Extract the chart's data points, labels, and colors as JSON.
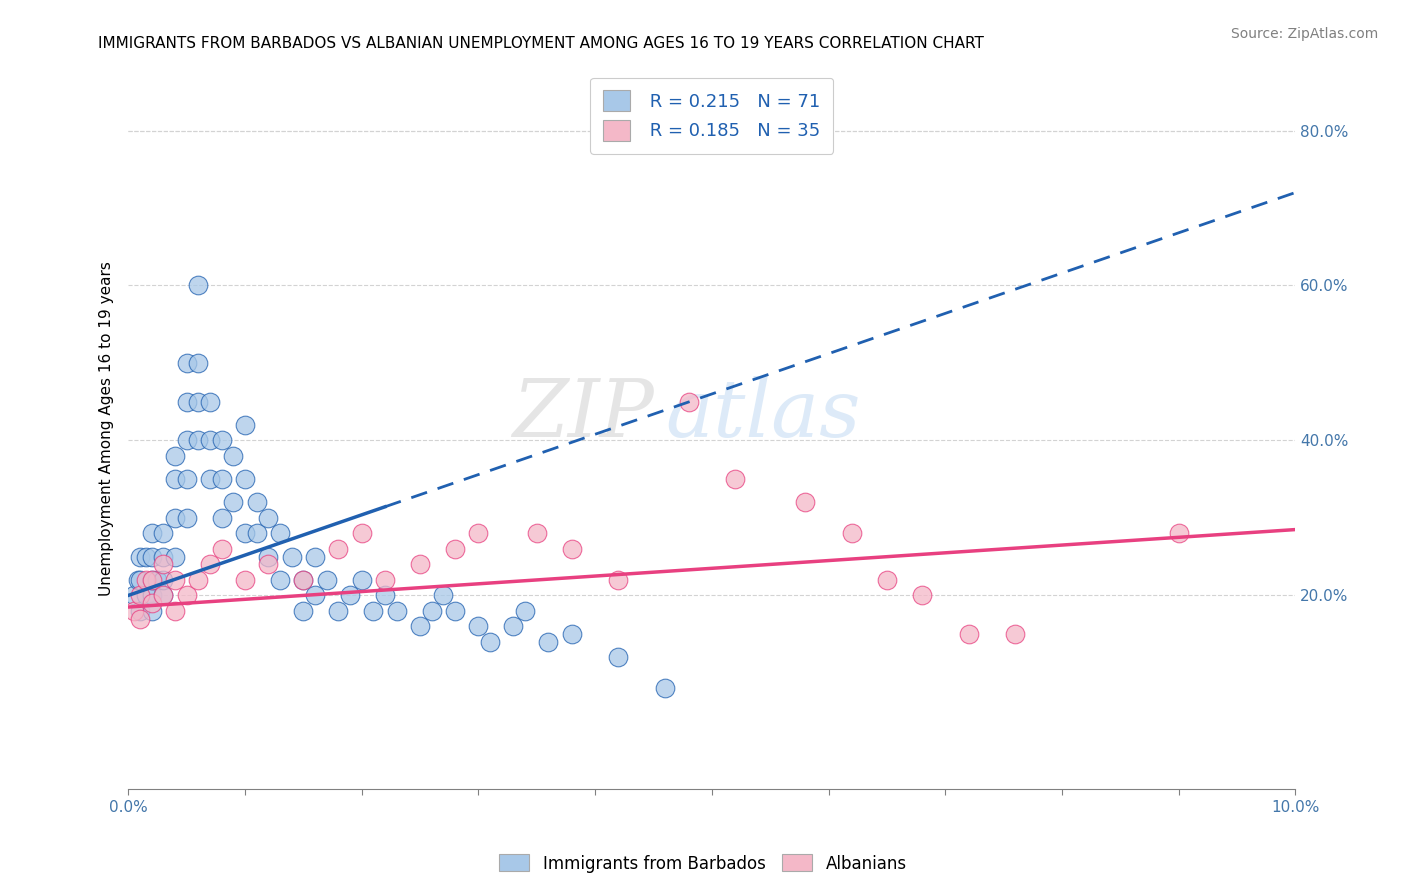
{
  "title": "IMMIGRANTS FROM BARBADOS VS ALBANIAN UNEMPLOYMENT AMONG AGES 16 TO 19 YEARS CORRELATION CHART",
  "source": "Source: ZipAtlas.com",
  "ylabel": "Unemployment Among Ages 16 to 19 years",
  "right_yticks": [
    "20.0%",
    "40.0%",
    "60.0%",
    "80.0%"
  ],
  "right_ytick_vals": [
    0.2,
    0.4,
    0.6,
    0.8
  ],
  "legend1_r": "R = 0.215",
  "legend1_n": "N = 71",
  "legend2_r": "R = 0.185",
  "legend2_n": "N = 35",
  "legend1_label": "Immigrants from Barbados",
  "legend2_label": "Albanians",
  "blue_color": "#a8c8e8",
  "pink_color": "#f4b8c8",
  "blue_line_color": "#2060b0",
  "pink_line_color": "#e84080",
  "background_color": "#ffffff",
  "watermark_zip": "ZIP",
  "watermark_atlas": "atlas",
  "xmin": 0.0,
  "xmax": 0.1,
  "ymin": -0.05,
  "ymax": 0.88,
  "blue_x": [
    0.0005,
    0.0008,
    0.001,
    0.001,
    0.001,
    0.0015,
    0.0015,
    0.002,
    0.002,
    0.002,
    0.002,
    0.002,
    0.0025,
    0.003,
    0.003,
    0.003,
    0.003,
    0.004,
    0.004,
    0.004,
    0.004,
    0.005,
    0.005,
    0.005,
    0.005,
    0.005,
    0.006,
    0.006,
    0.006,
    0.006,
    0.007,
    0.007,
    0.007,
    0.008,
    0.008,
    0.008,
    0.009,
    0.009,
    0.01,
    0.01,
    0.01,
    0.011,
    0.011,
    0.012,
    0.012,
    0.013,
    0.013,
    0.014,
    0.015,
    0.015,
    0.016,
    0.016,
    0.017,
    0.018,
    0.019,
    0.02,
    0.021,
    0.022,
    0.023,
    0.025,
    0.026,
    0.027,
    0.028,
    0.03,
    0.031,
    0.033,
    0.034,
    0.036,
    0.038,
    0.042,
    0.046
  ],
  "blue_y": [
    0.2,
    0.22,
    0.18,
    0.22,
    0.25,
    0.2,
    0.25,
    0.18,
    0.2,
    0.22,
    0.25,
    0.28,
    0.22,
    0.2,
    0.22,
    0.25,
    0.28,
    0.25,
    0.3,
    0.35,
    0.38,
    0.3,
    0.35,
    0.4,
    0.45,
    0.5,
    0.4,
    0.45,
    0.5,
    0.6,
    0.35,
    0.4,
    0.45,
    0.3,
    0.35,
    0.4,
    0.32,
    0.38,
    0.28,
    0.35,
    0.42,
    0.28,
    0.32,
    0.25,
    0.3,
    0.22,
    0.28,
    0.25,
    0.18,
    0.22,
    0.2,
    0.25,
    0.22,
    0.18,
    0.2,
    0.22,
    0.18,
    0.2,
    0.18,
    0.16,
    0.18,
    0.2,
    0.18,
    0.16,
    0.14,
    0.16,
    0.18,
    0.14,
    0.15,
    0.12,
    0.08
  ],
  "pink_x": [
    0.0005,
    0.001,
    0.001,
    0.0015,
    0.002,
    0.002,
    0.003,
    0.003,
    0.004,
    0.004,
    0.005,
    0.006,
    0.007,
    0.008,
    0.01,
    0.012,
    0.015,
    0.018,
    0.02,
    0.022,
    0.025,
    0.028,
    0.03,
    0.035,
    0.038,
    0.042,
    0.048,
    0.052,
    0.058,
    0.062,
    0.065,
    0.068,
    0.072,
    0.076,
    0.09
  ],
  "pink_y": [
    0.18,
    0.17,
    0.2,
    0.22,
    0.19,
    0.22,
    0.2,
    0.24,
    0.18,
    0.22,
    0.2,
    0.22,
    0.24,
    0.26,
    0.22,
    0.24,
    0.22,
    0.26,
    0.28,
    0.22,
    0.24,
    0.26,
    0.28,
    0.28,
    0.26,
    0.22,
    0.45,
    0.35,
    0.32,
    0.28,
    0.22,
    0.2,
    0.15,
    0.15,
    0.28
  ],
  "blue_line_x0": 0.0,
  "blue_line_y0": 0.2,
  "blue_line_x1": 0.1,
  "blue_line_y1": 0.72,
  "pink_line_x0": 0.0,
  "pink_line_y0": 0.185,
  "pink_line_x1": 0.1,
  "pink_line_y1": 0.285
}
